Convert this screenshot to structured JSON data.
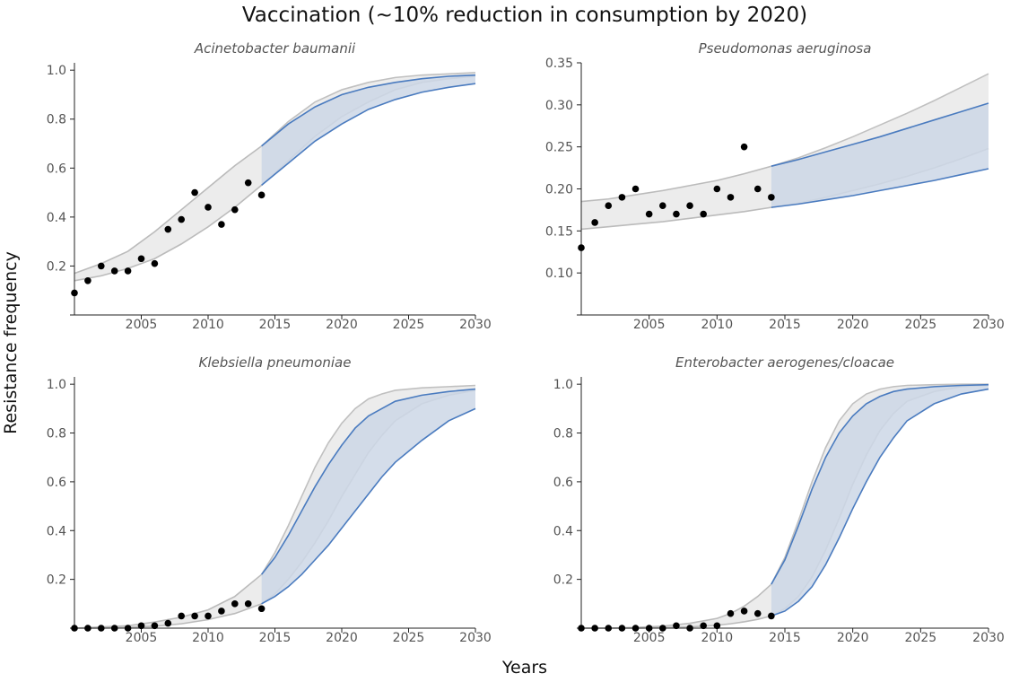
{
  "figure": {
    "title": "Vaccination (~10% reduction in consumption by 2020)",
    "xlabel": "Years",
    "ylabel": "Resistance frequency"
  },
  "colors": {
    "observed_points": "#000000",
    "historical_band_fill": "#ececec",
    "historical_band_line": "#bbbbbb",
    "baseline_band_fill": "#ececec",
    "baseline_band_line": "#c0c0c0",
    "scenario_band_fill": "#ccd7e6",
    "scenario_band_line": "#4a7bbf",
    "axis": "#222222",
    "tick_text": "#555555"
  },
  "chart_data": [
    {
      "type": "scatter",
      "title": "Acinetobacter baumanii",
      "xlim": [
        2000,
        2030
      ],
      "ylim": [
        0,
        1.03
      ],
      "x_ticks": [
        2005,
        2010,
        2015,
        2020,
        2025,
        2030
      ],
      "y_ticks": [
        0.2,
        0.4,
        0.6,
        0.8,
        1.0
      ],
      "y_tick_labels": [
        "0.2",
        "0.4",
        "0.6",
        "0.8",
        "1.0"
      ],
      "observed": {
        "x": [
          2000,
          2001,
          2002,
          2003,
          2004,
          2005,
          2006,
          2007,
          2008,
          2009,
          2010,
          2011,
          2012,
          2013,
          2014
        ],
        "y": [
          0.09,
          0.14,
          0.2,
          0.18,
          0.18,
          0.23,
          0.21,
          0.35,
          0.39,
          0.5,
          0.44,
          0.37,
          0.43,
          0.54,
          0.49
        ]
      },
      "fit_band": {
        "x": [
          2000,
          2002,
          2004,
          2006,
          2008,
          2010,
          2012,
          2014
        ],
        "upper": [
          0.17,
          0.21,
          0.26,
          0.34,
          0.43,
          0.52,
          0.61,
          0.69
        ],
        "lower": [
          0.14,
          0.16,
          0.19,
          0.23,
          0.29,
          0.36,
          0.44,
          0.53
        ]
      },
      "baseline_band": {
        "x": [
          2014,
          2016,
          2018,
          2020,
          2022,
          2024,
          2026,
          2028,
          2030
        ],
        "upper": [
          0.69,
          0.79,
          0.87,
          0.92,
          0.95,
          0.97,
          0.98,
          0.985,
          0.99
        ],
        "lower": [
          0.53,
          0.63,
          0.73,
          0.81,
          0.87,
          0.92,
          0.95,
          0.965,
          0.975
        ]
      },
      "scenario_band": {
        "x": [
          2014,
          2016,
          2018,
          2020,
          2022,
          2024,
          2026,
          2028,
          2030
        ],
        "upper": [
          0.69,
          0.78,
          0.85,
          0.9,
          0.93,
          0.95,
          0.965,
          0.975,
          0.98
        ],
        "lower": [
          0.53,
          0.62,
          0.71,
          0.78,
          0.84,
          0.88,
          0.91,
          0.93,
          0.945
        ]
      }
    },
    {
      "type": "scatter",
      "title": "Pseudomonas aeruginosa",
      "xlim": [
        2000,
        2030
      ],
      "ylim": [
        0.05,
        0.35
      ],
      "x_ticks": [
        2005,
        2010,
        2015,
        2020,
        2025,
        2030
      ],
      "y_ticks": [
        0.1,
        0.15,
        0.2,
        0.25,
        0.3,
        0.35
      ],
      "y_tick_labels": [
        "0.10",
        "0.15",
        "0.20",
        "0.25",
        "0.30",
        "0.35"
      ],
      "observed": {
        "x": [
          2000,
          2001,
          2002,
          2003,
          2004,
          2005,
          2006,
          2007,
          2008,
          2009,
          2010,
          2011,
          2012,
          2013,
          2014
        ],
        "y": [
          0.13,
          0.16,
          0.18,
          0.19,
          0.2,
          0.17,
          0.18,
          0.17,
          0.18,
          0.17,
          0.2,
          0.19,
          0.25,
          0.2,
          0.19
        ]
      },
      "fit_band": {
        "x": [
          2000,
          2002,
          2004,
          2006,
          2008,
          2010,
          2012,
          2014
        ],
        "upper": [
          0.185,
          0.188,
          0.193,
          0.198,
          0.204,
          0.21,
          0.218,
          0.227
        ],
        "lower": [
          0.152,
          0.155,
          0.158,
          0.161,
          0.165,
          0.169,
          0.173,
          0.178
        ]
      },
      "baseline_band": {
        "x": [
          2014,
          2016,
          2018,
          2020,
          2022,
          2024,
          2026,
          2028,
          2030
        ],
        "upper": [
          0.227,
          0.237,
          0.249,
          0.262,
          0.276,
          0.29,
          0.305,
          0.321,
          0.337
        ],
        "lower": [
          0.178,
          0.183,
          0.19,
          0.198,
          0.206,
          0.215,
          0.225,
          0.236,
          0.248
        ]
      },
      "scenario_band": {
        "x": [
          2014,
          2016,
          2018,
          2020,
          2022,
          2024,
          2026,
          2028,
          2030
        ],
        "upper": [
          0.227,
          0.235,
          0.244,
          0.253,
          0.262,
          0.272,
          0.282,
          0.292,
          0.302
        ],
        "lower": [
          0.178,
          0.182,
          0.187,
          0.192,
          0.198,
          0.204,
          0.21,
          0.217,
          0.224
        ]
      }
    },
    {
      "type": "scatter",
      "title": "Klebsiella pneumoniae",
      "xlim": [
        2000,
        2030
      ],
      "ylim": [
        0,
        1.03
      ],
      "x_ticks": [
        2005,
        2010,
        2015,
        2020,
        2025,
        2030
      ],
      "y_ticks": [
        0.2,
        0.4,
        0.6,
        0.8,
        1.0
      ],
      "y_tick_labels": [
        "0.2",
        "0.4",
        "0.6",
        "0.8",
        "1.0"
      ],
      "observed": {
        "x": [
          2000,
          2001,
          2002,
          2003,
          2004,
          2005,
          2006,
          2007,
          2008,
          2009,
          2010,
          2011,
          2012,
          2013,
          2014
        ],
        "y": [
          0.0,
          0.0,
          0.0,
          0.0,
          0.0,
          0.01,
          0.01,
          0.02,
          0.05,
          0.05,
          0.05,
          0.07,
          0.1,
          0.1,
          0.08
        ]
      },
      "fit_band": {
        "x": [
          2000,
          2002,
          2004,
          2006,
          2008,
          2010,
          2012,
          2014
        ],
        "upper": [
          0.0,
          0.005,
          0.01,
          0.025,
          0.045,
          0.075,
          0.13,
          0.22
        ],
        "lower": [
          0.0,
          0.0,
          0.003,
          0.008,
          0.018,
          0.035,
          0.06,
          0.1
        ]
      },
      "baseline_band": {
        "x": [
          2014,
          2015,
          2016,
          2017,
          2018,
          2019,
          2020,
          2021,
          2022,
          2023,
          2024,
          2026,
          2028,
          2030
        ],
        "upper": [
          0.22,
          0.31,
          0.42,
          0.54,
          0.66,
          0.76,
          0.84,
          0.9,
          0.94,
          0.96,
          0.975,
          0.985,
          0.99,
          0.995
        ],
        "lower": [
          0.1,
          0.14,
          0.2,
          0.27,
          0.35,
          0.44,
          0.54,
          0.63,
          0.72,
          0.79,
          0.85,
          0.92,
          0.955,
          0.975
        ]
      },
      "scenario_band": {
        "x": [
          2014,
          2015,
          2016,
          2017,
          2018,
          2019,
          2020,
          2021,
          2022,
          2023,
          2024,
          2026,
          2028,
          2030
        ],
        "upper": [
          0.22,
          0.29,
          0.38,
          0.48,
          0.58,
          0.67,
          0.75,
          0.82,
          0.87,
          0.9,
          0.93,
          0.955,
          0.97,
          0.98
        ],
        "lower": [
          0.1,
          0.13,
          0.17,
          0.22,
          0.28,
          0.34,
          0.41,
          0.48,
          0.55,
          0.62,
          0.68,
          0.77,
          0.85,
          0.9
        ]
      }
    },
    {
      "type": "scatter",
      "title": "Enterobacter aerogenes/cloacae",
      "xlim": [
        2000,
        2030
      ],
      "ylim": [
        0,
        1.03
      ],
      "x_ticks": [
        2005,
        2010,
        2015,
        2020,
        2025,
        2030
      ],
      "y_ticks": [
        0.2,
        0.4,
        0.6,
        0.8,
        1.0
      ],
      "y_tick_labels": [
        "0.2",
        "0.4",
        "0.6",
        "0.8",
        "1.0"
      ],
      "observed": {
        "x": [
          2000,
          2001,
          2002,
          2003,
          2004,
          2005,
          2006,
          2007,
          2008,
          2009,
          2010,
          2011,
          2012,
          2013,
          2014
        ],
        "y": [
          0.0,
          0.0,
          0.0,
          0.0,
          0.0,
          0.0,
          0.0,
          0.01,
          0.0,
          0.01,
          0.01,
          0.06,
          0.07,
          0.06,
          0.05
        ]
      },
      "fit_band": {
        "x": [
          2000,
          2002,
          2004,
          2006,
          2008,
          2010,
          2011,
          2012,
          2013,
          2014
        ],
        "upper": [
          0.0,
          0.0,
          0.003,
          0.008,
          0.02,
          0.04,
          0.06,
          0.09,
          0.13,
          0.18
        ],
        "lower": [
          0.0,
          0.0,
          0.0,
          0.002,
          0.005,
          0.012,
          0.018,
          0.026,
          0.036,
          0.05
        ]
      },
      "baseline_band": {
        "x": [
          2014,
          2015,
          2016,
          2017,
          2018,
          2019,
          2020,
          2021,
          2022,
          2023,
          2024,
          2026,
          2028,
          2030
        ],
        "upper": [
          0.18,
          0.29,
          0.44,
          0.6,
          0.74,
          0.85,
          0.92,
          0.96,
          0.98,
          0.99,
          0.995,
          0.998,
          1.0,
          1.0
        ],
        "lower": [
          0.05,
          0.08,
          0.13,
          0.21,
          0.32,
          0.45,
          0.59,
          0.71,
          0.81,
          0.88,
          0.93,
          0.97,
          0.99,
          0.995
        ]
      },
      "scenario_band": {
        "x": [
          2014,
          2015,
          2016,
          2017,
          2018,
          2019,
          2020,
          2021,
          2022,
          2023,
          2024,
          2026,
          2028,
          2030
        ],
        "upper": [
          0.18,
          0.28,
          0.42,
          0.57,
          0.7,
          0.8,
          0.87,
          0.92,
          0.95,
          0.97,
          0.98,
          0.99,
          0.995,
          0.998
        ],
        "lower": [
          0.05,
          0.07,
          0.11,
          0.17,
          0.26,
          0.37,
          0.49,
          0.6,
          0.7,
          0.78,
          0.85,
          0.92,
          0.96,
          0.98
        ]
      }
    }
  ]
}
